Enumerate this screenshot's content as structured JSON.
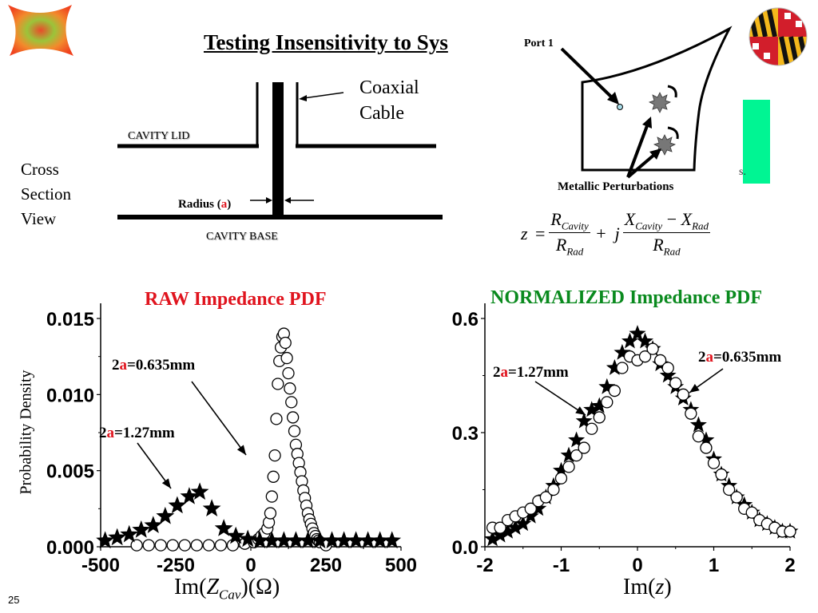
{
  "slide": {
    "title": "Testing Insensitivity to Sys",
    "slide_number": "25",
    "logos": {
      "left": "fractal-logo",
      "right": "maryland-flag-globe-logo"
    },
    "accent_colors": {
      "red": "#e0141e",
      "green": "#0a8a1e",
      "green_block": "#00f593"
    }
  },
  "cross_section": {
    "view_label_lines": [
      "Cross",
      "Section",
      "View"
    ],
    "coax_label_lines": [
      "Coaxial",
      "Cable"
    ],
    "lid_label": "CAVITY LID",
    "base_label": "CAVITY BASE",
    "radius_label_prefix": "Radius (",
    "radius_label_var": "a",
    "radius_label_suffix": ")"
  },
  "cavity_diagram": {
    "port_label": "Port 1",
    "perturbation_label": "Metallic Perturbations",
    "partial_text": "s."
  },
  "formula": {
    "lhs": "z",
    "eq": "=",
    "num1": "R",
    "num1_sub": "Cavity",
    "den1": "R",
    "den1_sub": "Rad",
    "plus": "+",
    "j": "j",
    "num2a": "X",
    "num2a_sub": "Cavity",
    "minus": "−",
    "num2b": "X",
    "num2b_sub": "Rad",
    "den2": "R",
    "den2_sub": "Rad"
  },
  "chart_data": [
    {
      "type": "scatter",
      "title": "RAW Impedance PDF",
      "xlabel": "Im(Z_Cav)(Ω)",
      "xlabel_parts": {
        "pre": "Im(",
        "var": "Z",
        "sub": "Cav",
        "post": ")(Ω)"
      },
      "ylabel": "Probability Density",
      "xlim": [
        -500,
        500
      ],
      "ylim": [
        0,
        0.015
      ],
      "xticks": [
        "-500",
        "-250",
        "0",
        "250",
        "500"
      ],
      "xtick_values": [
        -500,
        -250,
        0,
        250,
        500
      ],
      "yticks": [
        "0.000",
        "0.005",
        "0.010",
        "0.015"
      ],
      "ytick_values": [
        0,
        0.005,
        0.01,
        0.015
      ],
      "grid": false,
      "annotations": [
        {
          "prefix": "2",
          "var": "a",
          "suffix": "=0.635mm"
        },
        {
          "prefix": "2",
          "var": "a",
          "suffix": "=1.27mm"
        }
      ],
      "series": [
        {
          "name": "2a=1.27mm",
          "marker": "star",
          "x": [
            -485,
            -445,
            -405,
            -365,
            -325,
            -285,
            -245,
            -205,
            -170,
            -130,
            -90,
            -50,
            -10,
            30,
            70,
            110,
            150,
            190,
            230,
            270,
            310,
            350,
            390,
            430,
            470
          ],
          "y": [
            0.0004,
            0.0006,
            0.0008,
            0.0011,
            0.0014,
            0.002,
            0.0027,
            0.0033,
            0.0036,
            0.0025,
            0.0012,
            0.0007,
            0.0005,
            0.0004,
            0.0004,
            0.0004,
            0.0004,
            0.0004,
            0.0004,
            0.0004,
            0.0004,
            0.0004,
            0.0004,
            0.0004,
            0.0004
          ]
        },
        {
          "name": "2a=0.635mm",
          "marker": "circle",
          "x": [
            -380,
            -340,
            -300,
            -260,
            -220,
            -180,
            -140,
            -100,
            -60,
            -20,
            10,
            25,
            35,
            45,
            55,
            60,
            65,
            70,
            75,
            80,
            85,
            90,
            95,
            100,
            105,
            110,
            115,
            120,
            125,
            130,
            135,
            140,
            145,
            150,
            155,
            160,
            165,
            170,
            175,
            180,
            185,
            190,
            195,
            200,
            205,
            210,
            215,
            220,
            225,
            230,
            250
          ],
          "y": [
            0.0001,
            0.0001,
            0.0001,
            0.0001,
            0.0001,
            0.0001,
            0.0001,
            0.0001,
            0.0001,
            0.0002,
            0.0003,
            0.0005,
            0.0007,
            0.0009,
            0.0012,
            0.0016,
            0.0022,
            0.0033,
            0.0046,
            0.006,
            0.0084,
            0.0107,
            0.0122,
            0.0131,
            0.0138,
            0.014,
            0.0134,
            0.0124,
            0.0114,
            0.0104,
            0.0095,
            0.0085,
            0.0076,
            0.0067,
            0.0061,
            0.0055,
            0.0049,
            0.0043,
            0.0037,
            0.0032,
            0.0027,
            0.0022,
            0.0018,
            0.0015,
            0.0012,
            0.0009,
            0.0007,
            0.0005,
            0.0004,
            0.0003,
            0.0001
          ]
        }
      ]
    },
    {
      "type": "scatter",
      "title": "NORMALIZED Impedance PDF",
      "xlabel": "Im(z)",
      "xlabel_parts": {
        "pre": "Im(",
        "var": "z",
        "sub": "",
        "post": ")"
      },
      "ylabel": "",
      "xlim": [
        -2,
        2
      ],
      "ylim": [
        0,
        0.6
      ],
      "xticks": [
        "-2",
        "-1",
        "0",
        "1",
        "2"
      ],
      "xtick_values": [
        -2,
        -1,
        0,
        1,
        2
      ],
      "yticks": [
        "0.0",
        "0.3",
        "0.6"
      ],
      "ytick_values": [
        0,
        0.3,
        0.6
      ],
      "grid": false,
      "annotations": [
        {
          "prefix": "2",
          "var": "a",
          "suffix": "=1.27mm"
        },
        {
          "prefix": "2",
          "var": "a",
          "suffix": "=0.635mm"
        }
      ],
      "series": [
        {
          "name": "2a=1.27mm",
          "marker": "star",
          "x": [
            -1.9,
            -1.8,
            -1.7,
            -1.6,
            -1.5,
            -1.4,
            -1.3,
            -1.2,
            -1.1,
            -1.0,
            -0.9,
            -0.8,
            -0.7,
            -0.6,
            -0.5,
            -0.4,
            -0.3,
            -0.2,
            -0.1,
            0.0,
            0.1,
            0.2,
            0.3,
            0.4,
            0.5,
            0.6,
            0.7,
            0.8,
            0.9,
            1.0,
            1.1,
            1.2,
            1.3,
            1.4,
            1.5,
            1.6,
            1.7,
            1.8,
            1.9,
            2.0
          ],
          "y": [
            0.02,
            0.03,
            0.04,
            0.05,
            0.06,
            0.08,
            0.1,
            0.13,
            0.16,
            0.2,
            0.24,
            0.28,
            0.33,
            0.36,
            0.37,
            0.42,
            0.47,
            0.51,
            0.54,
            0.56,
            0.54,
            0.52,
            0.48,
            0.45,
            0.42,
            0.39,
            0.36,
            0.32,
            0.28,
            0.23,
            0.19,
            0.16,
            0.13,
            0.11,
            0.09,
            0.07,
            0.06,
            0.05,
            0.04,
            0.04
          ]
        },
        {
          "name": "2a=0.635mm",
          "marker": "circle",
          "x": [
            -1.9,
            -1.8,
            -1.7,
            -1.6,
            -1.5,
            -1.4,
            -1.3,
            -1.2,
            -1.1,
            -1.0,
            -0.9,
            -0.8,
            -0.7,
            -0.6,
            -0.5,
            -0.4,
            -0.3,
            -0.2,
            -0.1,
            0.0,
            0.1,
            0.2,
            0.3,
            0.4,
            0.5,
            0.6,
            0.7,
            0.8,
            0.9,
            1.0,
            1.1,
            1.2,
            1.3,
            1.4,
            1.5,
            1.6,
            1.7,
            1.8,
            1.9,
            2.0
          ],
          "y": [
            0.05,
            0.05,
            0.07,
            0.08,
            0.09,
            0.1,
            0.12,
            0.13,
            0.15,
            0.18,
            0.21,
            0.24,
            0.26,
            0.31,
            0.34,
            0.38,
            0.41,
            0.47,
            0.5,
            0.49,
            0.5,
            0.52,
            0.49,
            0.47,
            0.43,
            0.4,
            0.35,
            0.29,
            0.26,
            0.22,
            0.19,
            0.15,
            0.13,
            0.1,
            0.09,
            0.07,
            0.06,
            0.05,
            0.04,
            0.04
          ]
        }
      ]
    }
  ]
}
